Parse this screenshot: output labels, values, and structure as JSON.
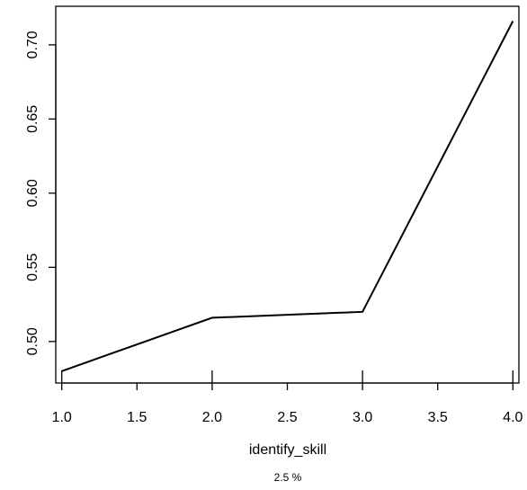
{
  "chart_data": {
    "type": "line",
    "x": [
      1.0,
      2.0,
      3.0,
      4.0
    ],
    "series": [
      {
        "values": [
          0.48,
          0.516,
          0.52,
          0.716
        ]
      }
    ],
    "xlabel": "identify_skill",
    "subtitle": "2.5 %",
    "ylabel": "",
    "title": "",
    "xlim": [
      0.96,
      4.04
    ],
    "ylim": [
      0.472,
      0.726
    ],
    "x_ticks": [
      1.0,
      1.5,
      2.0,
      2.5,
      3.0,
      3.5,
      4.0
    ],
    "x_tick_labels": [
      "1.0",
      "1.5",
      "2.0",
      "2.5",
      "3.0",
      "3.5",
      "4.0"
    ],
    "y_ticks": [
      0.5,
      0.55,
      0.6,
      0.65,
      0.7
    ],
    "y_tick_labels": [
      "0.50",
      "0.55",
      "0.60",
      "0.65",
      "0.70"
    ],
    "rug_x": [
      1.0,
      2.0,
      3.0,
      4.0
    ],
    "grid": false,
    "line_color": "#000000"
  }
}
